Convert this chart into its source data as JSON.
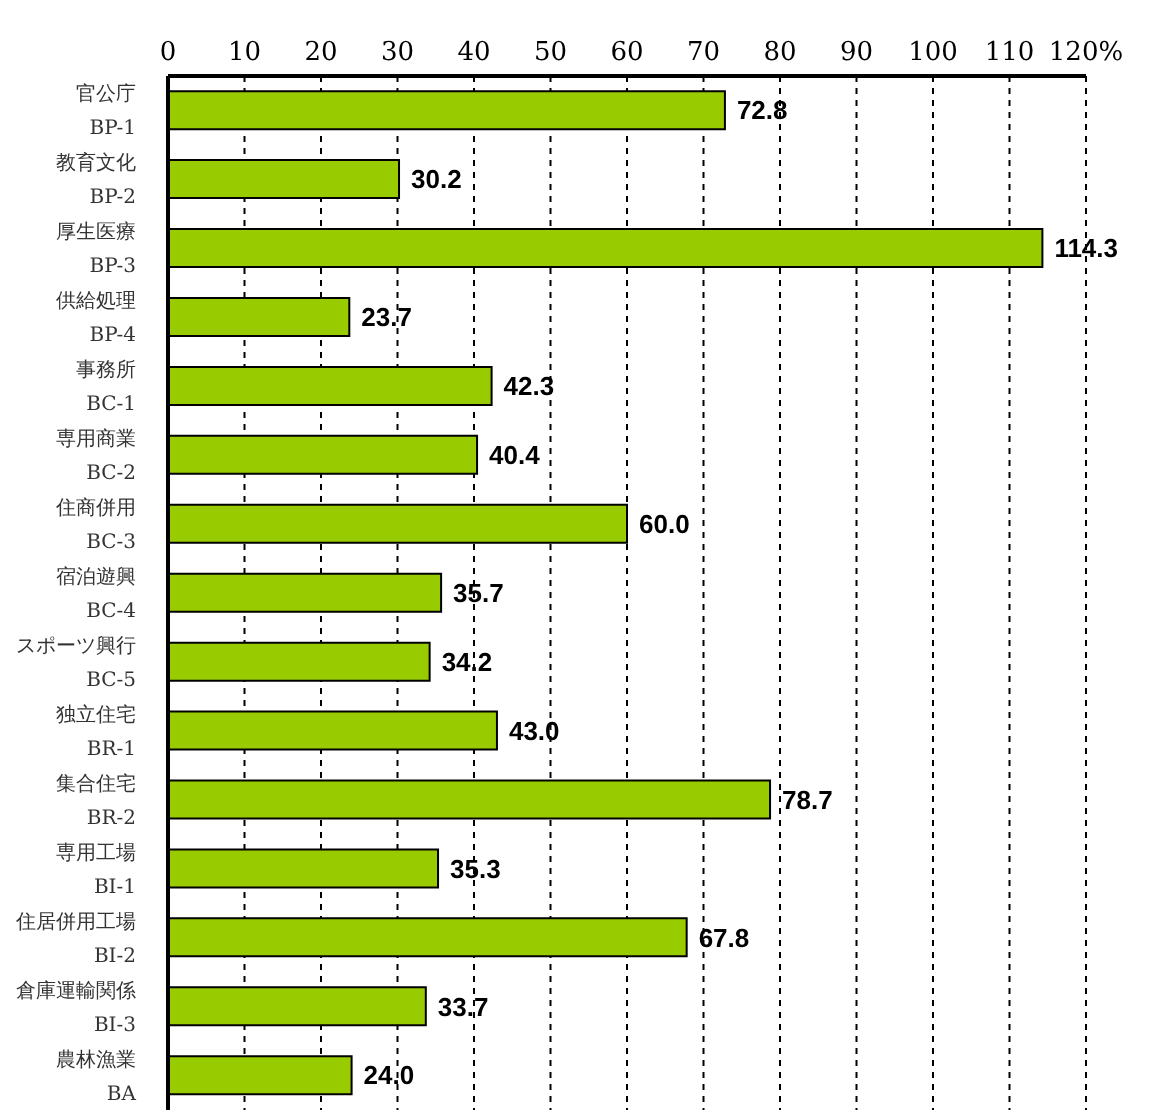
{
  "chart_data": {
    "type": "bar",
    "orientation": "horizontal",
    "categories": [
      "官公庁\nBP-1",
      "教育文化\nBP-2",
      "厚生医療\nBP-3",
      "供給処理\nBP-4",
      "事務所\nBC-1",
      "専用商業\nBC-2",
      "住商併用\nBC-3",
      "宿泊遊興\nBC-4",
      "スポーツ興行\nBC-5",
      "独立住宅\nBR-1",
      "集合住宅\nBR-2",
      "専用工場\nBI-1",
      "住居併用工場\nBI-2",
      "倉庫運輸関係\nBI-3",
      "農林漁業\nBA"
    ],
    "values": [
      72.8,
      30.2,
      114.3,
      23.7,
      42.3,
      40.4,
      60.0,
      35.7,
      34.2,
      43.0,
      78.7,
      35.3,
      67.8,
      33.7,
      24.0
    ],
    "value_labels": [
      "72.8",
      "30.2",
      "114.3",
      "23.7",
      "42.3",
      "40.4",
      "60.0",
      "35.7",
      "34.2",
      "43.0",
      "78.7",
      "35.3",
      "67.8",
      "33.7",
      "24.0"
    ],
    "color": "#99cc00",
    "xlim": [
      0,
      120
    ],
    "xticks": [
      0,
      10,
      20,
      30,
      40,
      50,
      60,
      70,
      80,
      90,
      100,
      110,
      {
        "value": 120,
        "label": "120%"
      }
    ],
    "grid": "x"
  }
}
